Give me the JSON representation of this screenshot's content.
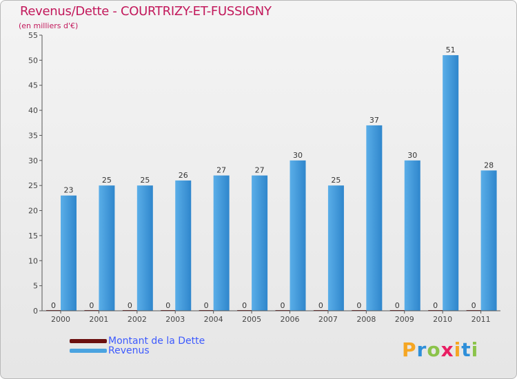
{
  "chart_data": {
    "type": "bar",
    "title": "Revenus/Dette - COURTRIZY-ET-FUSSIGNY",
    "subtitle": "(en milliers d'€)",
    "xlabel": "",
    "ylabel": "",
    "categories": [
      "2000",
      "2001",
      "2002",
      "2003",
      "2004",
      "2005",
      "2006",
      "2007",
      "2008",
      "2009",
      "2010",
      "2011"
    ],
    "series": [
      {
        "name": "Montant de la Dette",
        "color": "#6b0f0f",
        "values": [
          0,
          0,
          0,
          0,
          0,
          0,
          0,
          0,
          0,
          0,
          0,
          0
        ]
      },
      {
        "name": "Revenus",
        "color": "#4aa3e0",
        "values": [
          23,
          25,
          25,
          26,
          27,
          27,
          30,
          25,
          37,
          30,
          51,
          28
        ]
      }
    ],
    "ylim": [
      0,
      55
    ],
    "yticks": [
      0,
      5,
      10,
      15,
      20,
      25,
      30,
      35,
      40,
      45,
      50,
      55
    ],
    "grid": false,
    "legend": "bottom-left"
  },
  "logo": {
    "text": "Proxiti",
    "letter_colors": [
      "#f5a623",
      "#2e8fd9",
      "#8bc34a",
      "#e91e63",
      "#f5a623",
      "#2e8fd9",
      "#8bc34a"
    ]
  }
}
